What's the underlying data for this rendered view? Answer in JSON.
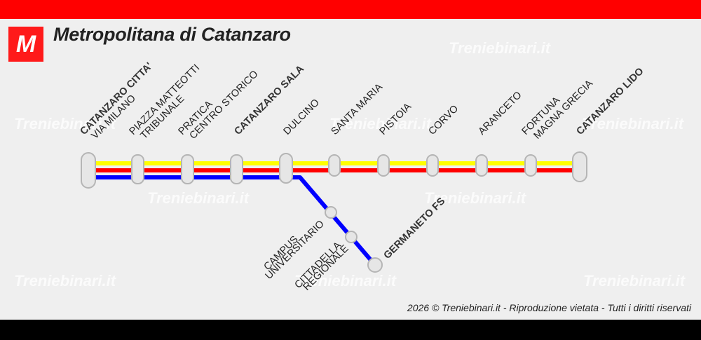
{
  "header": {
    "title": "Metropolitana di Catanzaro",
    "logo_letter": "M"
  },
  "footer": {
    "year": "2026",
    "copyright_symbol": "©",
    "text": "Treniebinari.it - Riproduzione vietata - Tutti i diritti riservati"
  },
  "watermark": "Treniebinari.it",
  "colors": {
    "top_bar": "#ff0000",
    "bottom_bar": "#000000",
    "line_yellow": "#ffff00",
    "line_red": "#ff0000",
    "line_blue": "#0000ff",
    "logo_bg": "#ff1a1a"
  },
  "lines": [
    {
      "color": "yellow",
      "from": "Catanzaro Citta'",
      "to": "Catanzaro Lido"
    },
    {
      "color": "red",
      "from": "Catanzaro Citta'",
      "to": "Catanzaro Lido"
    },
    {
      "color": "blue",
      "from": "Catanzaro Citta'",
      "to": "Germaneto FS"
    }
  ],
  "stations": {
    "s1": {
      "line1": "CATANZARO CITTA'",
      "line2": "VIA MILANO"
    },
    "s2": {
      "line1": "PIAZZA MATTEOTTI",
      "line2": "TRIBUNALE"
    },
    "s3": {
      "line1": "PRATICA",
      "line2": "CENTRO STORICO"
    },
    "s4": {
      "line1": "CATANZARO SALA"
    },
    "s5": {
      "line1": "DULCINO"
    },
    "s6": {
      "line1": "SANTA MARIA"
    },
    "s7": {
      "line1": "PISTOIA"
    },
    "s8": {
      "line1": "CORVO"
    },
    "s9": {
      "line1": "ARANCETO"
    },
    "s10": {
      "line1": "FORTUNA",
      "line2": "MAGNA GRECIA"
    },
    "s11": {
      "line1": "CATANZARO LIDO"
    },
    "b1": {
      "line1": "CAMPUS",
      "line2": "UNIVERSITARIO"
    },
    "b2": {
      "line1": "CITTADELLA",
      "line2": "REGIONALE"
    },
    "b3": {
      "line1": "GERMANETO FS"
    }
  }
}
